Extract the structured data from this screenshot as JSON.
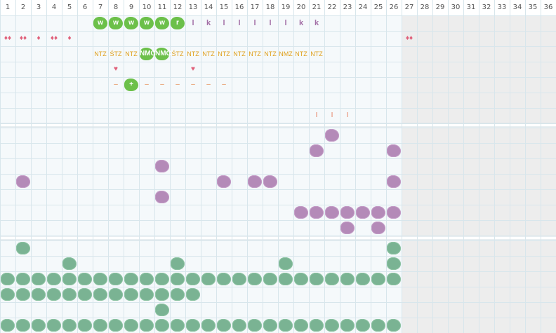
{
  "columns": [
    "1",
    "2",
    "3",
    "4",
    "5",
    "6",
    "7",
    "8",
    "9",
    "10",
    "11",
    "12",
    "13",
    "14",
    "15",
    "16",
    "17",
    "18",
    "19",
    "20",
    "21",
    "22",
    "23",
    "24",
    "25",
    "26",
    "27",
    "28",
    "29",
    "30",
    "31",
    "32",
    "33",
    "34",
    "35",
    "36"
  ],
  "row1_bright": [
    {
      "col": 7,
      "label": "w"
    },
    {
      "col": 8,
      "label": "w"
    },
    {
      "col": 9,
      "label": "w"
    },
    {
      "col": 10,
      "label": "w"
    },
    {
      "col": 11,
      "label": "w"
    },
    {
      "col": 12,
      "label": "r"
    }
  ],
  "row1_purple_text": [
    {
      "col": 13,
      "label": "l"
    },
    {
      "col": 14,
      "label": "k"
    },
    {
      "col": 15,
      "label": "l"
    },
    {
      "col": 16,
      "label": "l"
    },
    {
      "col": 17,
      "label": "l"
    },
    {
      "col": 18,
      "label": "l"
    },
    {
      "col": 19,
      "label": "l"
    },
    {
      "col": 20,
      "label": "k"
    },
    {
      "col": 21,
      "label": "k"
    }
  ],
  "row2_drops": [
    {
      "col": 1,
      "label": "♦♦"
    },
    {
      "col": 2,
      "label": "♦♦"
    },
    {
      "col": 3,
      "label": "♦"
    },
    {
      "col": 4,
      "label": "♦♦"
    },
    {
      "col": 5,
      "label": "♦"
    },
    {
      "col": 27,
      "label": "♦♦"
    }
  ],
  "row3_codes": [
    {
      "col": 7,
      "label": "NTZ"
    },
    {
      "col": 8,
      "label": "ŚTZ"
    },
    {
      "col": 9,
      "label": "NTZ"
    },
    {
      "col": 12,
      "label": "ŚTZ"
    },
    {
      "col": 13,
      "label": "NTZ"
    },
    {
      "col": 14,
      "label": "NTZ"
    },
    {
      "col": 15,
      "label": "NTZ"
    },
    {
      "col": 16,
      "label": "NTZ"
    },
    {
      "col": 17,
      "label": "NTZ"
    },
    {
      "col": 18,
      "label": "NTZ"
    },
    {
      "col": 19,
      "label": "NMZ"
    },
    {
      "col": 20,
      "label": "NTZ"
    },
    {
      "col": 21,
      "label": "NTZ"
    }
  ],
  "row3_bright": [
    {
      "col": 10,
      "label": "NMC"
    },
    {
      "col": 11,
      "label": "NMC"
    }
  ],
  "row4_hearts": [
    {
      "col": 8,
      "label": "♥"
    },
    {
      "col": 13,
      "label": "♥"
    }
  ],
  "row5_dashes": [
    {
      "col": 8,
      "label": "–"
    },
    {
      "col": 10,
      "label": "–"
    },
    {
      "col": 11,
      "label": "–"
    },
    {
      "col": 12,
      "label": "–"
    },
    {
      "col": 13,
      "label": "–"
    },
    {
      "col": 14,
      "label": "–"
    },
    {
      "col": 15,
      "label": "–"
    }
  ],
  "row5_bright": [
    {
      "col": 9,
      "label": "+"
    }
  ],
  "row7_ticks": [
    {
      "col": 21,
      "label": "I"
    },
    {
      "col": 22,
      "label": "I"
    },
    {
      "col": 23,
      "label": "I"
    }
  ],
  "purple_blobs": [
    [
      22,
      1
    ],
    [
      21,
      2
    ],
    [
      26,
      2
    ],
    [
      11,
      3
    ],
    [
      2,
      4
    ],
    [
      15,
      4
    ],
    [
      17,
      4
    ],
    [
      18,
      4
    ],
    [
      26,
      4
    ],
    [
      11,
      5
    ],
    [
      20,
      6
    ],
    [
      21,
      6
    ],
    [
      22,
      6
    ],
    [
      23,
      6
    ],
    [
      24,
      6
    ],
    [
      25,
      6
    ],
    [
      26,
      6
    ],
    [
      23,
      7
    ],
    [
      25,
      7
    ]
  ],
  "green_blobs_rows": {
    "r1": [
      2,
      26
    ],
    "r2": [
      5,
      12,
      19,
      26
    ],
    "r3": [
      1,
      2,
      3,
      4,
      5,
      6,
      7,
      8,
      9,
      10,
      11,
      12,
      13,
      14,
      15,
      16,
      17,
      18,
      19,
      20,
      21,
      22,
      23,
      24,
      25,
      26
    ],
    "r4": [
      1,
      2,
      3,
      4,
      5,
      6,
      7,
      8,
      9,
      10,
      11,
      12,
      13
    ],
    "r5": [
      11
    ],
    "r6": [
      1,
      2,
      3,
      4,
      5,
      6,
      7,
      8,
      9,
      10,
      11,
      12,
      13,
      14,
      15,
      16,
      17,
      18,
      19,
      20,
      21,
      22,
      23,
      24,
      25,
      26
    ]
  },
  "colors": {
    "grid_line": "#d8e6ec",
    "band_bg": "#f5f9fb",
    "grey_area": "#ededed",
    "section_sep": "#d0dde3"
  }
}
